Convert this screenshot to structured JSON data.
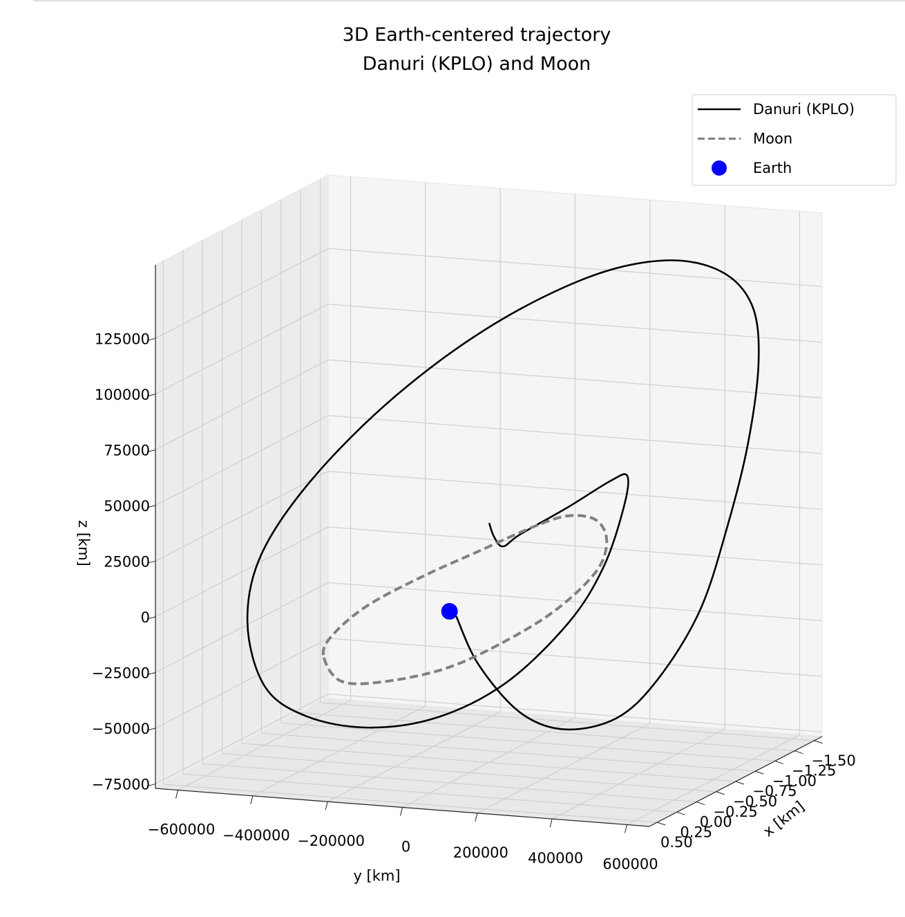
{
  "chart_data": {
    "type": "line3d",
    "title": "3D Earth-centered trajectory\nDanuri (KPLO) and Moon",
    "xlabel": "x [km]",
    "ylabel": "y [km]",
    "zlabel": "z [km]",
    "xlim": [
      -1.6,
      0.6
    ],
    "ylim": [
      -660000,
      660000
    ],
    "zlim": [
      -77000,
      158000
    ],
    "xticks": [
      {
        "value": -1.5,
        "label": "−1.50"
      },
      {
        "value": -1.25,
        "label": "−1.25"
      },
      {
        "value": -1.0,
        "label": "−1.00"
      },
      {
        "value": -0.75,
        "label": "−0.75"
      },
      {
        "value": -0.5,
        "label": "−0.50"
      },
      {
        "value": -0.25,
        "label": "−0.25"
      },
      {
        "value": 0,
        "label": "0.00"
      },
      {
        "value": 0.25,
        "label": "0.25"
      },
      {
        "value": 0.5,
        "label": "0.50"
      }
    ],
    "yticks": [
      {
        "value": -600000,
        "label": "−600000"
      },
      {
        "value": -400000,
        "label": "−400000"
      },
      {
        "value": -200000,
        "label": "−200000"
      },
      0,
      200000,
      400000,
      600000
    ],
    "zticks": [
      {
        "value": -75000,
        "label": "−75000"
      },
      {
        "value": -50000,
        "label": "−50000"
      },
      {
        "value": -25000,
        "label": "−25000"
      },
      0,
      25000,
      50000,
      75000,
      100000,
      125000
    ],
    "grid": true,
    "legend": "upper right",
    "series": [
      {
        "name": "Danuri (KPLO)",
        "color": "#000000",
        "linestyle": "solid",
        "x": [
          0,
          0,
          0,
          0,
          0,
          0,
          0,
          0,
          0,
          0,
          0,
          0,
          0,
          0,
          0,
          0,
          0,
          0,
          0,
          0,
          0,
          0,
          0,
          0,
          0,
          0,
          0,
          0,
          0,
          0,
          0,
          0,
          0,
          0
        ],
        "y": [
          18000,
          78000,
          189000,
          309000,
          448000,
          558000,
          669000,
          743000,
          798000,
          826000,
          808000,
          725000,
          577000,
          374000,
          115000,
          -143000,
          -365000,
          -503000,
          -540000,
          -494000,
          -383000,
          -217000,
          -32000,
          152000,
          318000,
          411000,
          466000,
          475000,
          429000,
          318000,
          189000,
          143000,
          119000,
          106000
        ],
        "z": [
          -2000,
          -23000,
          -43000,
          -49000,
          -42000,
          -23000,
          9000,
          48000,
          86000,
          123000,
          148000,
          162000,
          165000,
          155000,
          130000,
          95000,
          55000,
          19000,
          -12000,
          -40000,
          -52000,
          -55000,
          -48000,
          -30000,
          -1000,
          25000,
          53000,
          67000,
          64000,
          51000,
          37000,
          31000,
          35000,
          41000
        ]
      },
      {
        "name": "Moon",
        "color": "#808080",
        "linestyle": "dashed",
        "x": [
          0,
          0,
          0,
          0,
          0,
          0,
          0,
          0,
          0,
          0,
          0,
          0,
          0,
          0,
          0
        ],
        "y": [
          -337000,
          -309000,
          -217000,
          -69000,
          78000,
          226000,
          318000,
          392000,
          420000,
          392000,
          282000,
          134000,
          -14000,
          -180000,
          -291000
        ],
        "z": [
          -24000,
          -14000,
          0,
          15000,
          28000,
          41000,
          47000,
          46000,
          37000,
          23000,
          4000,
          -13000,
          -26000,
          -34000,
          -35000
        ]
      },
      {
        "name": "Earth",
        "color": "#0000ff",
        "marker": "circle",
        "x": [
          0
        ],
        "y": [
          0
        ],
        "z": [
          0
        ]
      }
    ]
  }
}
